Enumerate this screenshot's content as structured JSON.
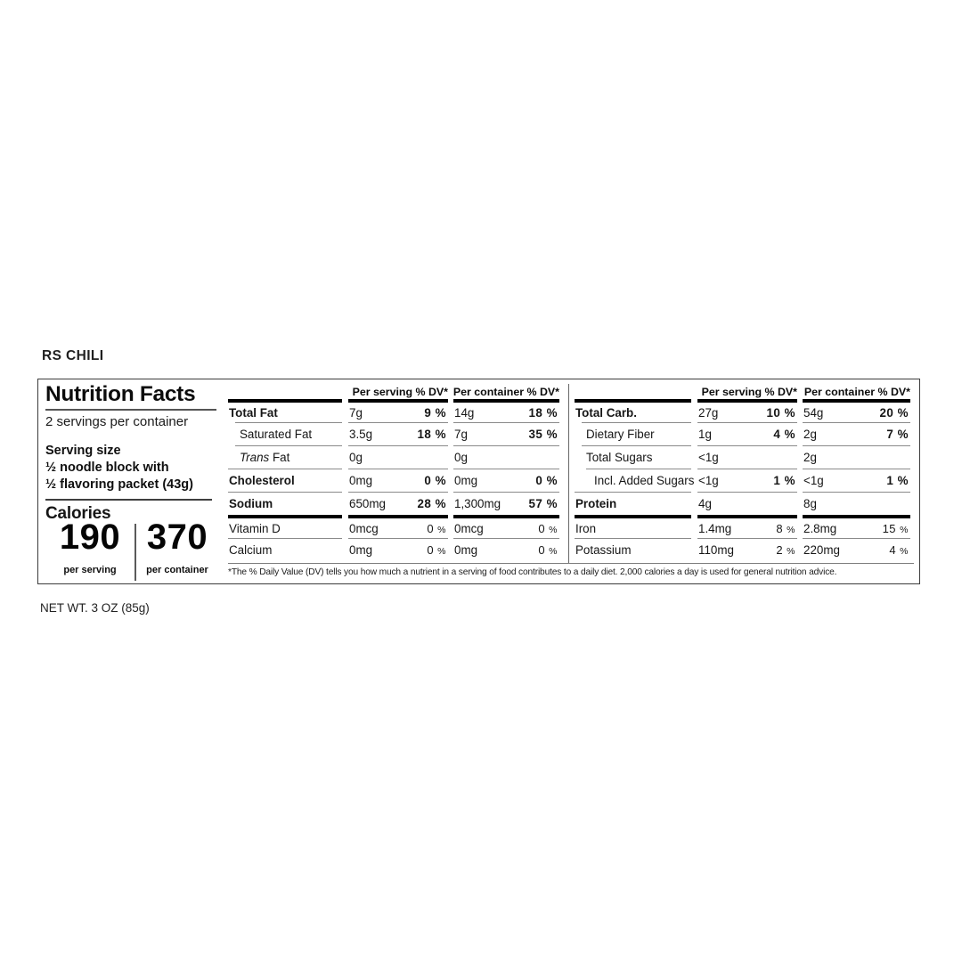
{
  "product": {
    "title": "RS CHILI",
    "net_weight": "NET WT. 3 OZ (85g)"
  },
  "panel": {
    "heading": "Nutrition Facts",
    "servings_per_container": "2 servings per container",
    "serving_size_label": "Serving size",
    "serving_size_lines": [
      "½ noodle block with",
      "½ flavoring packet (43g)"
    ],
    "calories_label": "Calories",
    "calories_per_serving": "190",
    "calories_per_container": "370",
    "per_serving_caption": "per serving",
    "per_container_caption": "per container"
  },
  "col_headers": {
    "per_serving": "Per serving % DV*",
    "per_container": "Per container % DV*"
  },
  "left_table": {
    "rows": [
      {
        "name": "Total Fat",
        "serv_amt": "7g",
        "serv_pct": "9 %",
        "cont_amt": "14g",
        "cont_pct": "18 %"
      },
      {
        "name": "Saturated Fat",
        "serv_amt": "3.5g",
        "serv_pct": "18 %",
        "cont_amt": "7g",
        "cont_pct": "35 %"
      },
      {
        "name_it": "Trans",
        "name": " Fat",
        "serv_amt": "0g",
        "serv_pct": "",
        "cont_amt": "0g",
        "cont_pct": ""
      },
      {
        "name": "Cholesterol",
        "serv_amt": "0mg",
        "serv_pct": "0 %",
        "cont_amt": "0mg",
        "cont_pct": "0 %"
      },
      {
        "name": "Sodium",
        "serv_amt": "650mg",
        "serv_pct": "28 %",
        "cont_amt": "1,300mg",
        "cont_pct": "57 %"
      },
      {
        "name": "Vitamin D",
        "serv_amt": "0mcg",
        "serv_pct": "0 %",
        "cont_amt": "0mcg",
        "cont_pct": "0 %"
      },
      {
        "name": "Calcium",
        "serv_amt": "0mg",
        "serv_pct": "0 %",
        "cont_amt": "0mg",
        "cont_pct": "0 %"
      }
    ]
  },
  "right_table": {
    "rows": [
      {
        "name": "Total Carb.",
        "serv_amt": "27g",
        "serv_pct": "10 %",
        "cont_amt": "54g",
        "cont_pct": "20 %"
      },
      {
        "name": "Dietary Fiber",
        "serv_amt": "1g",
        "serv_pct": "4 %",
        "cont_amt": "2g",
        "cont_pct": "7 %"
      },
      {
        "name": "Total Sugars",
        "serv_amt": "<1g",
        "serv_pct": "",
        "cont_amt": "2g",
        "cont_pct": ""
      },
      {
        "name": "Incl. Added Sugars",
        "serv_amt": "<1g",
        "serv_pct": "1 %",
        "cont_amt": "<1g",
        "cont_pct": "1 %"
      },
      {
        "name": "Protein",
        "serv_amt": "4g",
        "serv_pct": "",
        "cont_amt": "8g",
        "cont_pct": ""
      },
      {
        "name": "Iron",
        "serv_amt": "1.4mg",
        "serv_pct": "8 %",
        "cont_amt": "2.8mg",
        "cont_pct": "15 %"
      },
      {
        "name": "Potassium",
        "serv_amt": "110mg",
        "serv_pct": "2 %",
        "cont_amt": "220mg",
        "cont_pct": "4 %"
      }
    ]
  },
  "footnote": "*The % Daily Value (DV) tells you how much a nutrient in a serving of food contributes to a daily diet. 2,000 calories a day is used for general nutrition advice."
}
